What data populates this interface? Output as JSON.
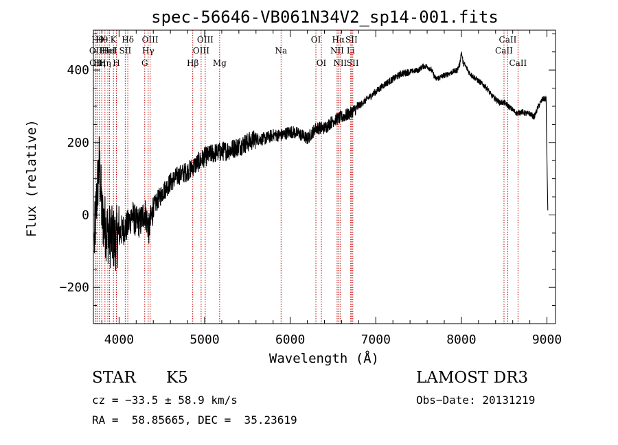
{
  "chart_data": {
    "type": "line",
    "title": "spec-56646-VB061N34V2_sp14-001.fits",
    "xlabel": "Wavelength (Å)",
    "ylabel": "Flux (relative)",
    "xlim": [
      3700,
      9100
    ],
    "ylim": [
      -300,
      510
    ],
    "xticks": [
      4000,
      5000,
      6000,
      7000,
      8000,
      9000
    ],
    "xtick_labels": [
      "4000",
      "5000",
      "6000",
      "7000",
      "8000",
      "9000"
    ],
    "yticks": [
      -200,
      0,
      200,
      400
    ],
    "ytick_labels": [
      "−200",
      "0",
      "200",
      "400"
    ],
    "series": [
      {
        "name": "flux",
        "x": [
          3710,
          3740,
          3770,
          3800,
          3850,
          3900,
          3950,
          4000,
          4050,
          4100,
          4150,
          4200,
          4250,
          4300,
          4350,
          4400,
          4500,
          4600,
          4700,
          4800,
          4900,
          5000,
          5100,
          5200,
          5300,
          5400,
          5500,
          5600,
          5700,
          5800,
          5900,
          6000,
          6100,
          6200,
          6300,
          6400,
          6500,
          6600,
          6700,
          6800,
          6900,
          7000,
          7100,
          7200,
          7300,
          7400,
          7500,
          7550,
          7600,
          7650,
          7700,
          7750,
          7800,
          7850,
          7900,
          7950,
          7980,
          8000,
          8020,
          8050,
          8100,
          8150,
          8200,
          8250,
          8300,
          8350,
          8400,
          8450,
          8500,
          8550,
          8600,
          8650,
          8700,
          8750,
          8800,
          8850,
          8900,
          8950,
          8990,
          9000,
          9010
        ],
        "y": [
          -80,
          50,
          150,
          0,
          -40,
          -60,
          -70,
          -50,
          -40,
          -30,
          0,
          -20,
          -20,
          10,
          -40,
          20,
          60,
          90,
          110,
          120,
          140,
          160,
          170,
          175,
          180,
          190,
          200,
          210,
          210,
          220,
          220,
          230,
          225,
          210,
          240,
          240,
          260,
          270,
          280,
          300,
          320,
          340,
          360,
          375,
          390,
          395,
          400,
          410,
          410,
          400,
          375,
          380,
          385,
          390,
          395,
          400,
          415,
          450,
          420,
          410,
          390,
          380,
          370,
          360,
          350,
          330,
          320,
          310,
          310,
          300,
          290,
          280,
          285,
          280,
          280,
          270,
          300,
          320,
          320,
          150,
          10
        ]
      }
    ],
    "lines": [
      {
        "x": 3728,
        "label": "OII",
        "row": 2
      },
      {
        "x": 3730,
        "label": "OII",
        "row": 3
      },
      {
        "x": 3750,
        "label": "Hθ",
        "row": 1
      },
      {
        "x": 3771,
        "label": "Hη",
        "row": 3
      },
      {
        "x": 3798,
        "label": "Hθ",
        "row": 1
      },
      {
        "x": 3835,
        "label": "Hη",
        "row": 3
      },
      {
        "x": 3869,
        "label": "HeI",
        "row": 2
      },
      {
        "x": 3889,
        "label": "HeI",
        "row": 2
      },
      {
        "x": 3934,
        "label": "K",
        "row": 1
      },
      {
        "x": 3969,
        "label": "H",
        "row": 3
      },
      {
        "x": 4072,
        "label": "SII",
        "row": 2
      },
      {
        "x": 4102,
        "label": "Hδ",
        "row": 1
      },
      {
        "x": 4300,
        "label": "G",
        "row": 3
      },
      {
        "x": 4340,
        "label": "Hγ",
        "row": 2
      },
      {
        "x": 4363,
        "label": "OIII",
        "row": 1
      },
      {
        "x": 4861,
        "label": "Hβ",
        "row": 3
      },
      {
        "x": 4959,
        "label": "OIII",
        "row": 2
      },
      {
        "x": 5007,
        "label": "OIII",
        "row": 1
      },
      {
        "x": 5175,
        "label": "Mg",
        "row": 3
      },
      {
        "x": 5893,
        "label": "Na",
        "row": 2
      },
      {
        "x": 6300,
        "label": "OI",
        "row": 1
      },
      {
        "x": 6364,
        "label": "OI",
        "row": 3
      },
      {
        "x": 6548,
        "label": "NII",
        "row": 2
      },
      {
        "x": 6563,
        "label": "Hα",
        "row": 1
      },
      {
        "x": 6583,
        "label": "NII",
        "row": 3
      },
      {
        "x": 6707,
        "label": "Li",
        "row": 2
      },
      {
        "x": 6716,
        "label": "SII",
        "row": 1
      },
      {
        "x": 6731,
        "label": "SII",
        "row": 3
      },
      {
        "x": 8498,
        "label": "CaII",
        "row": 2
      },
      {
        "x": 8542,
        "label": "CaII",
        "row": 1
      },
      {
        "x": 8662,
        "label": "CaII",
        "row": 3
      }
    ],
    "grid": false,
    "line_color": "#000000",
    "marker_line_color": "#c00000"
  },
  "info": {
    "class": "STAR",
    "subclass": "K5",
    "survey": "LAMOST DR3",
    "redshift": "cz = −33.5 ± 58.9 km/s",
    "obs_date": "Obs−Date: 20131219",
    "coords": "RA =  58.85665, DEC =  35.23619"
  }
}
